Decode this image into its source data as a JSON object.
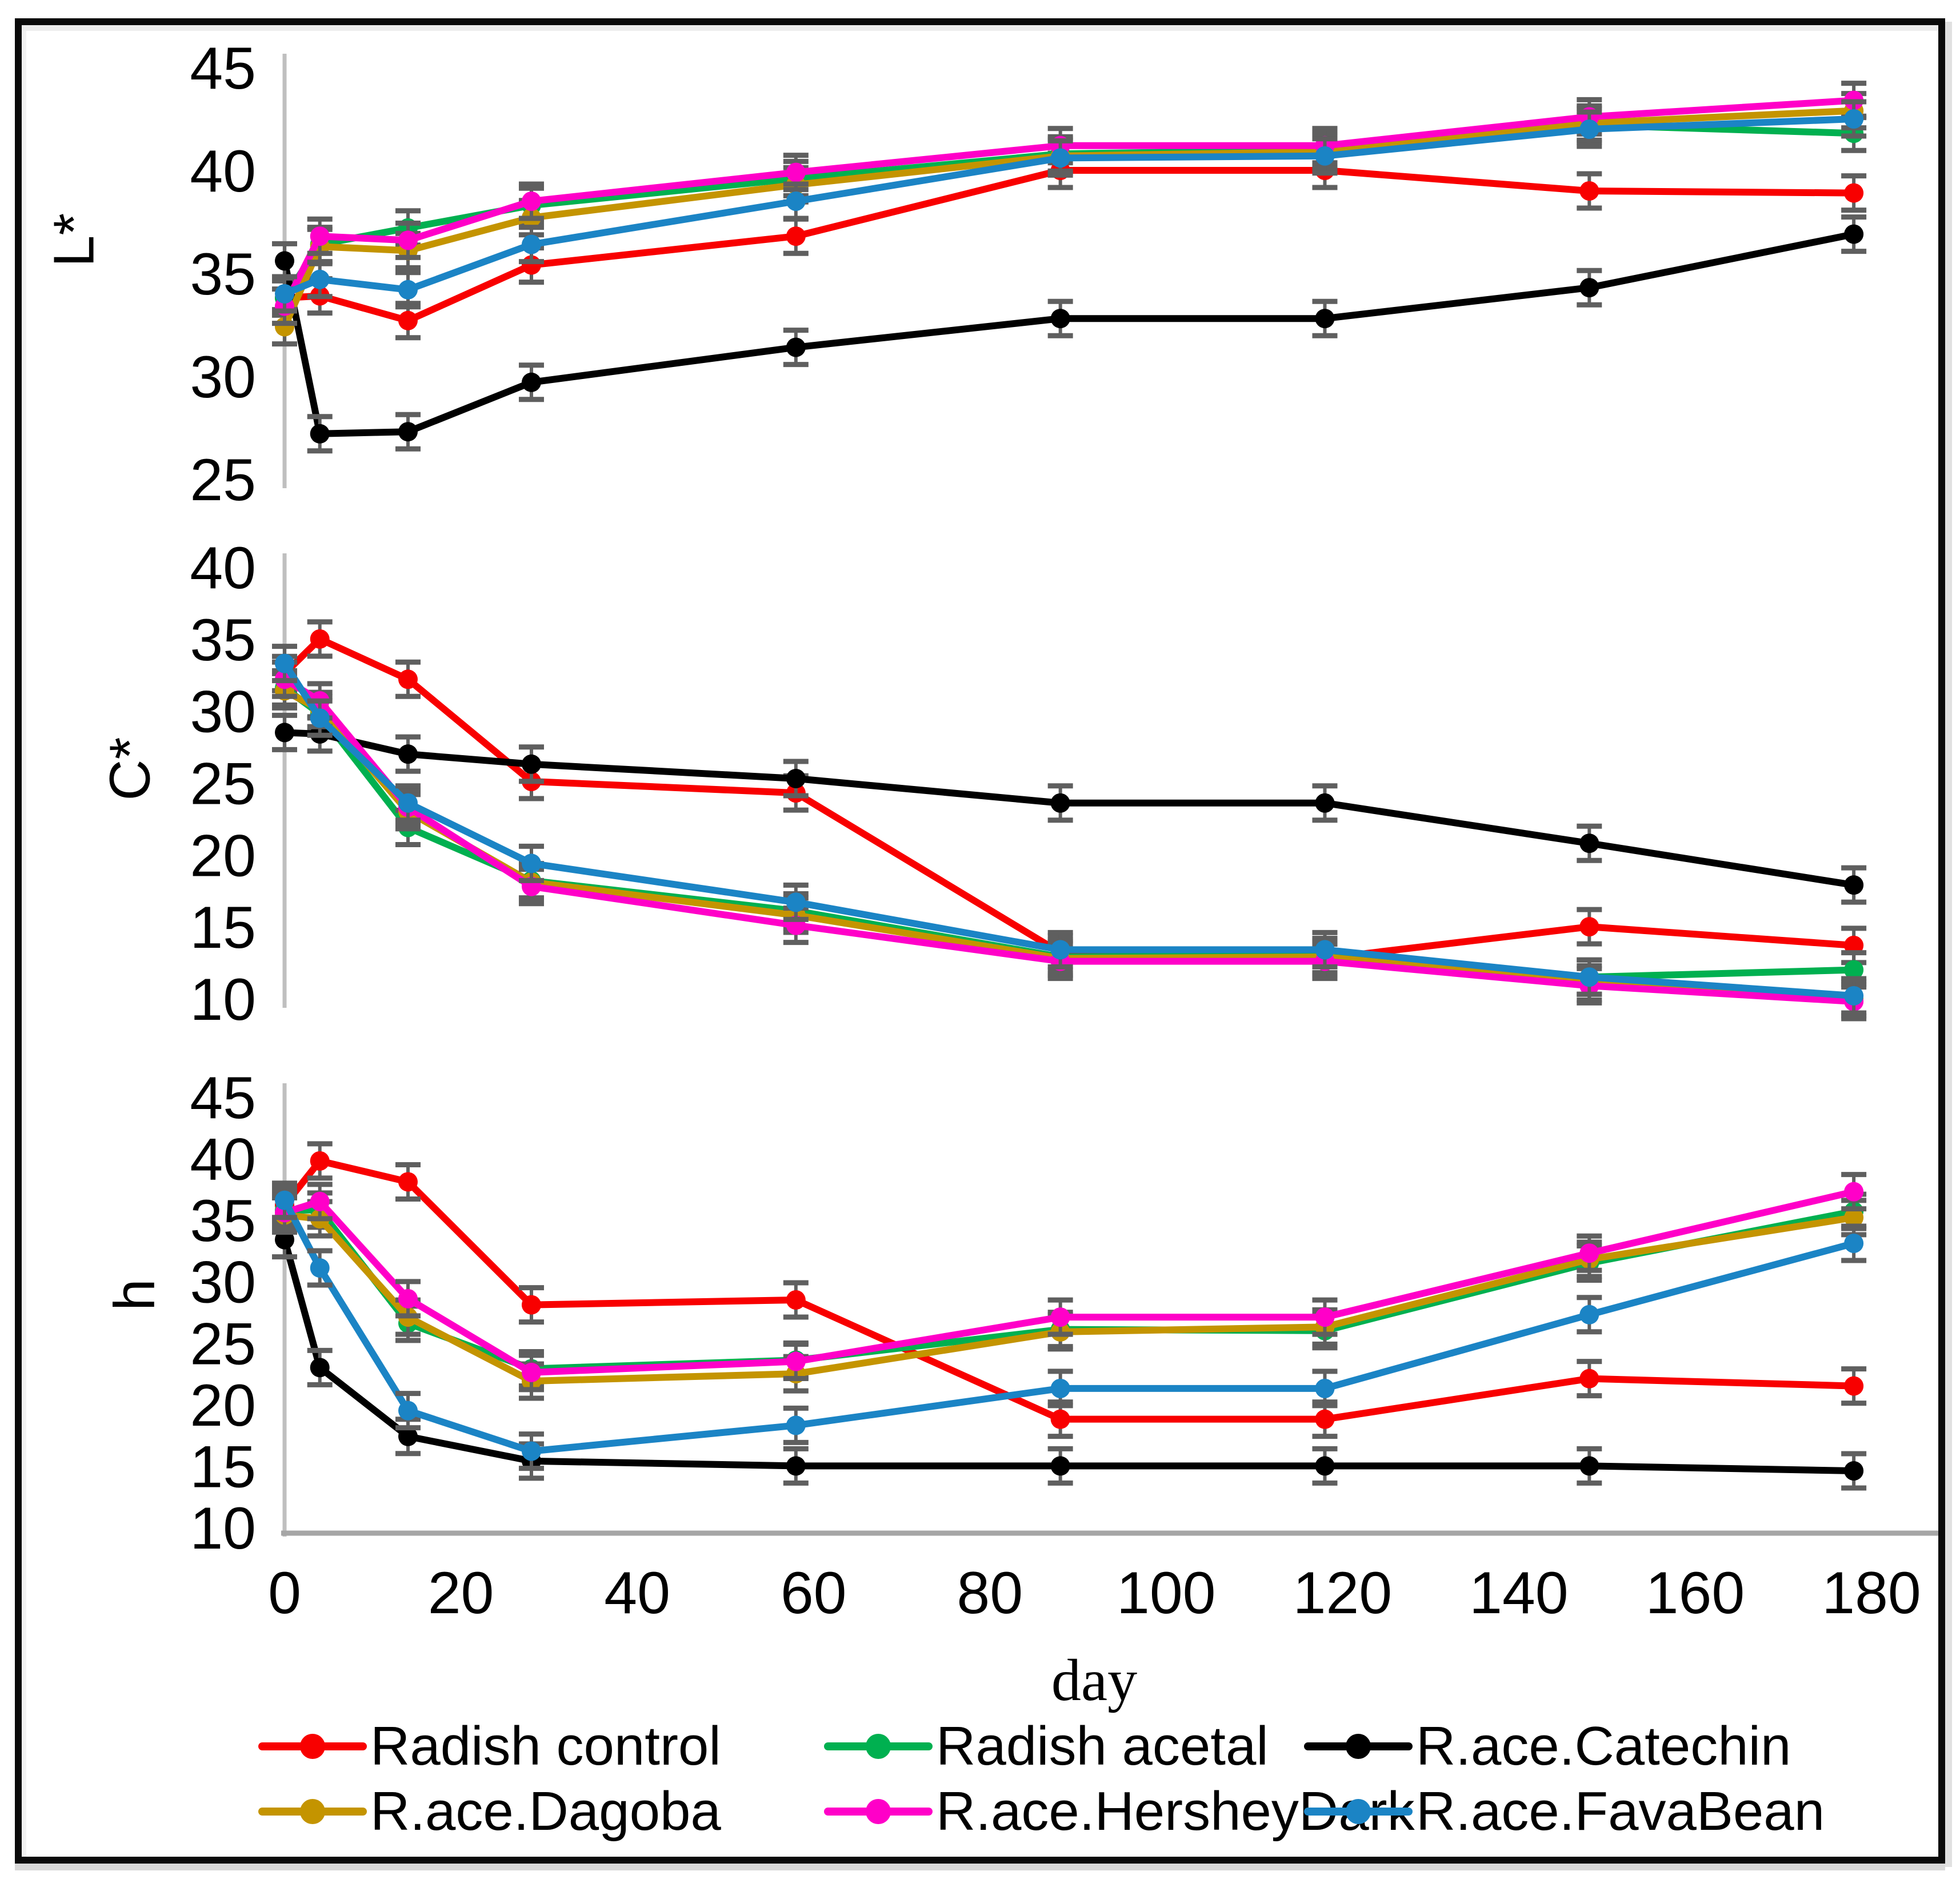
{
  "xlabel": "day",
  "x_ticks": [
    0,
    20,
    40,
    60,
    80,
    100,
    120,
    140,
    160,
    180
  ],
  "x_range": [
    0,
    180
  ],
  "colors": {
    "axis_line": "#BFBFBF",
    "bottom_axis_line": "#A6A6A6",
    "error_bar": "#5F5F5F",
    "text": "#000000"
  },
  "chart_data": [
    {
      "type": "line",
      "ylabel": "L*",
      "ylim": [
        25,
        45
      ],
      "yticks": [
        45,
        40,
        35,
        30,
        25
      ],
      "x": [
        0,
        4,
        14,
        28,
        58,
        88,
        118,
        148,
        178
      ],
      "series": [
        {
          "name": "Radish control",
          "color": "#F80000",
          "values": [
            33.8,
            33.9,
            32.7,
            35.4,
            36.8,
            40.0,
            40.0,
            39.0,
            38.9
          ]
        },
        {
          "name": "Radish acetal",
          "color": "#00B050",
          "values": [
            33.8,
            36.4,
            37.2,
            38.3,
            39.6,
            40.8,
            41.0,
            42.2,
            41.8
          ]
        },
        {
          "name": "R.ace.Catechin",
          "color": "#000000",
          "values": [
            35.6,
            27.2,
            27.3,
            29.7,
            31.4,
            32.8,
            32.8,
            34.3,
            36.9
          ]
        },
        {
          "name": "R.ace.Dagoba",
          "color": "#C49400",
          "values": [
            32.4,
            36.3,
            36.1,
            37.7,
            39.3,
            40.7,
            40.9,
            42.3,
            42.9
          ]
        },
        {
          "name": "R.ace.HersheyDark",
          "color": "#FF00C8",
          "values": [
            33.4,
            36.8,
            36.6,
            38.5,
            39.9,
            41.2,
            41.2,
            42.6,
            43.4
          ]
        },
        {
          "name": "R.ace.FavaBean",
          "color": "#1B84C5",
          "values": [
            34.0,
            34.7,
            34.2,
            36.4,
            38.5,
            40.6,
            40.7,
            42.0,
            42.5
          ]
        }
      ]
    },
    {
      "type": "line",
      "ylabel": "C*",
      "ylim": [
        10,
        40
      ],
      "yticks": [
        40,
        35,
        30,
        25,
        20,
        15,
        10
      ],
      "x": [
        0,
        4,
        14,
        28,
        58,
        88,
        118,
        148,
        178
      ],
      "series": [
        {
          "name": "Radish control",
          "color": "#F80000",
          "values": [
            32.6,
            35.0,
            32.2,
            25.1,
            24.3,
            13.2,
            12.8,
            15.0,
            13.7
          ]
        },
        {
          "name": "Radish acetal",
          "color": "#00B050",
          "values": [
            31.6,
            29.8,
            21.9,
            18.2,
            16.1,
            12.9,
            13.0,
            11.5,
            12.0
          ]
        },
        {
          "name": "R.ace.Catechin",
          "color": "#000000",
          "values": [
            28.5,
            28.4,
            27.0,
            26.3,
            25.3,
            23.6,
            23.6,
            20.8,
            17.9
          ]
        },
        {
          "name": "R.ace.Dagoba",
          "color": "#C49400",
          "values": [
            31.4,
            30.1,
            23.0,
            18.1,
            15.8,
            12.8,
            12.9,
            11.1,
            10.0
          ]
        },
        {
          "name": "R.ace.HersheyDark",
          "color": "#FF00C8",
          "values": [
            32.2,
            30.7,
            23.3,
            17.8,
            15.1,
            12.6,
            12.6,
            10.9,
            9.8
          ]
        },
        {
          "name": "R.ace.FavaBean",
          "color": "#1B84C5",
          "values": [
            33.3,
            29.5,
            23.6,
            19.4,
            16.7,
            13.4,
            13.4,
            11.5,
            10.2
          ]
        }
      ]
    },
    {
      "type": "line",
      "ylabel": "h",
      "ylim": [
        10,
        45
      ],
      "yticks": [
        45,
        40,
        35,
        30,
        25,
        20,
        15,
        10
      ],
      "x": [
        0,
        4,
        14,
        28,
        58,
        88,
        118,
        148,
        178
      ],
      "series": [
        {
          "name": "Radish control",
          "color": "#F80000",
          "values": [
            36.2,
            39.8,
            38.1,
            28.1,
            28.5,
            18.8,
            18.8,
            22.1,
            21.5
          ]
        },
        {
          "name": "Radish acetal",
          "color": "#00B050",
          "values": [
            35.8,
            35.8,
            26.6,
            22.9,
            23.6,
            26.1,
            26.0,
            31.5,
            35.7
          ]
        },
        {
          "name": "R.ace.Catechin",
          "color": "#000000",
          "values": [
            33.4,
            23.0,
            17.4,
            15.4,
            15.0,
            15.0,
            15.0,
            15.0,
            14.6
          ]
        },
        {
          "name": "R.ace.Dagoba",
          "color": "#C49400",
          "values": [
            35.4,
            35.1,
            27.1,
            21.9,
            22.5,
            25.9,
            26.3,
            31.8,
            35.2
          ]
        },
        {
          "name": "R.ace.HersheyDark",
          "color": "#FF00C8",
          "values": [
            35.6,
            36.5,
            28.6,
            22.6,
            23.5,
            27.1,
            27.1,
            32.3,
            37.3
          ]
        },
        {
          "name": "R.ace.FavaBean",
          "color": "#1B84C5",
          "values": [
            36.6,
            31.1,
            19.5,
            16.2,
            18.3,
            21.3,
            21.3,
            27.3,
            33.1
          ]
        }
      ]
    }
  ],
  "legend": {
    "items": [
      {
        "label": "Radish control",
        "color": "#F80000"
      },
      {
        "label": "Radish acetal",
        "color": "#00B050"
      },
      {
        "label": "R.ace.Catechin",
        "color": "#000000"
      },
      {
        "label": "R.ace.Dagoba",
        "color": "#C49400"
      },
      {
        "label": "R.ace.HersheyDark",
        "color": "#FF00C8"
      },
      {
        "label": "R.ace.FavaBean",
        "color": "#1B84C5"
      }
    ]
  }
}
